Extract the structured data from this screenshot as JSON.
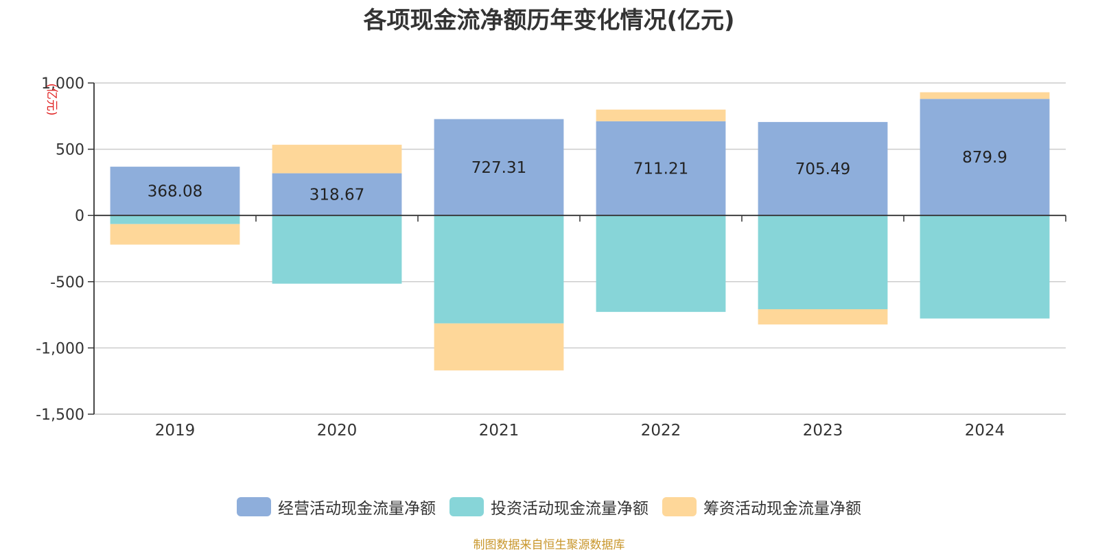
{
  "chart_data": {
    "type": "bar",
    "stacked": true,
    "title": "各项现金流净额历年变化情况(亿元)",
    "ylabel": "(亿元)",
    "categories": [
      "2019",
      "2020",
      "2021",
      "2022",
      "2023",
      "2024"
    ],
    "ylim": [
      -1500,
      1000
    ],
    "yticks": [
      "1,000",
      "500",
      "0",
      "-500",
      "-1,000",
      "-1,500"
    ],
    "ytick_values": [
      1000,
      500,
      0,
      -500,
      -1000,
      -1500
    ],
    "grid": true,
    "legend_position": "bottom",
    "series": [
      {
        "name": "经营活动现金流量净额",
        "color": "#8eaedb",
        "values": [
          368.08,
          318.67,
          727.31,
          711.21,
          705.49,
          879.9
        ],
        "labels": [
          "368.08",
          "318.67",
          "727.31",
          "711.21",
          "705.49",
          "879.9"
        ]
      },
      {
        "name": "投资活动现金流量净额",
        "color": "#87d5d8",
        "values": [
          -65,
          -515,
          -815,
          -728,
          -708,
          -778
        ]
      },
      {
        "name": "筹资活动现金流量净额",
        "color": "#fed799",
        "values": [
          -155,
          215,
          -355,
          88,
          -115,
          50
        ]
      }
    ]
  },
  "footer": {
    "source": "制图数据来自恒生聚源数据库"
  }
}
